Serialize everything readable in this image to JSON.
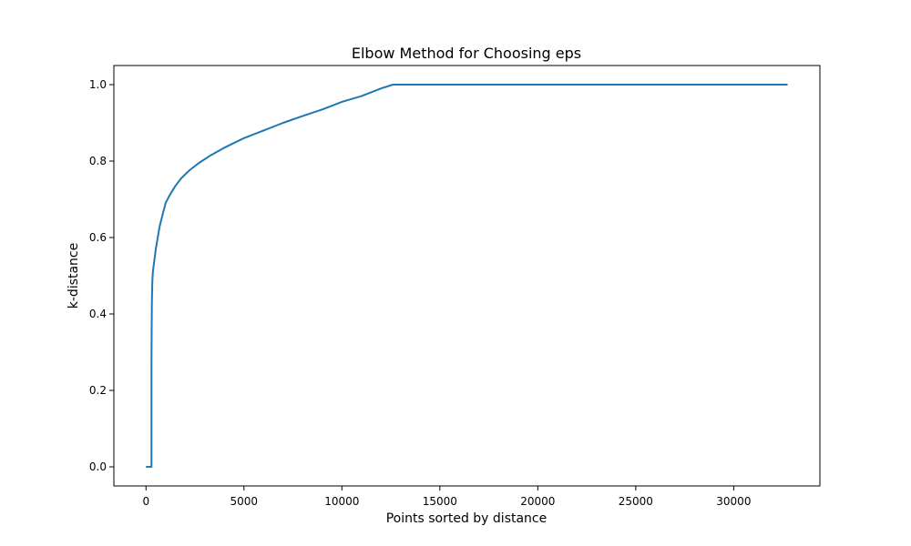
{
  "chart_data": {
    "type": "line",
    "title": "Elbow Method for Choosing eps",
    "xlabel": "Points sorted by distance",
    "ylabel": "k-distance",
    "xlim": [
      -1640,
      34400
    ],
    "ylim": [
      -0.05,
      1.05
    ],
    "xticks": [
      0,
      5000,
      10000,
      15000,
      20000,
      25000,
      30000
    ],
    "xtick_labels": [
      "0",
      "5000",
      "10000",
      "15000",
      "20000",
      "25000",
      "30000"
    ],
    "yticks": [
      0.0,
      0.2,
      0.4,
      0.6,
      0.8,
      1.0
    ],
    "ytick_labels": [
      "0.0",
      "0.2",
      "0.4",
      "0.6",
      "0.8",
      "1.0"
    ],
    "grid": false,
    "legend": "none",
    "series": [
      {
        "color": "#1f77b4",
        "x": [
          0,
          280,
          280,
          290,
          300,
          320,
          350,
          400,
          500,
          600,
          700,
          850,
          1000,
          1200,
          1500,
          1800,
          2200,
          2700,
          3300,
          4000,
          5000,
          6000,
          7000,
          8000,
          9000,
          10000,
          11000,
          12000,
          12600,
          14000,
          16000,
          20000,
          25000,
          30000,
          32750
        ],
        "y": [
          0.0,
          0.0,
          0.28,
          0.36,
          0.43,
          0.48,
          0.51,
          0.53,
          0.57,
          0.6,
          0.63,
          0.66,
          0.69,
          0.71,
          0.735,
          0.755,
          0.775,
          0.795,
          0.815,
          0.835,
          0.86,
          0.88,
          0.9,
          0.918,
          0.935,
          0.955,
          0.97,
          0.99,
          1.0,
          1.0,
          1.0,
          1.0,
          1.0,
          1.0,
          1.0
        ]
      }
    ]
  }
}
